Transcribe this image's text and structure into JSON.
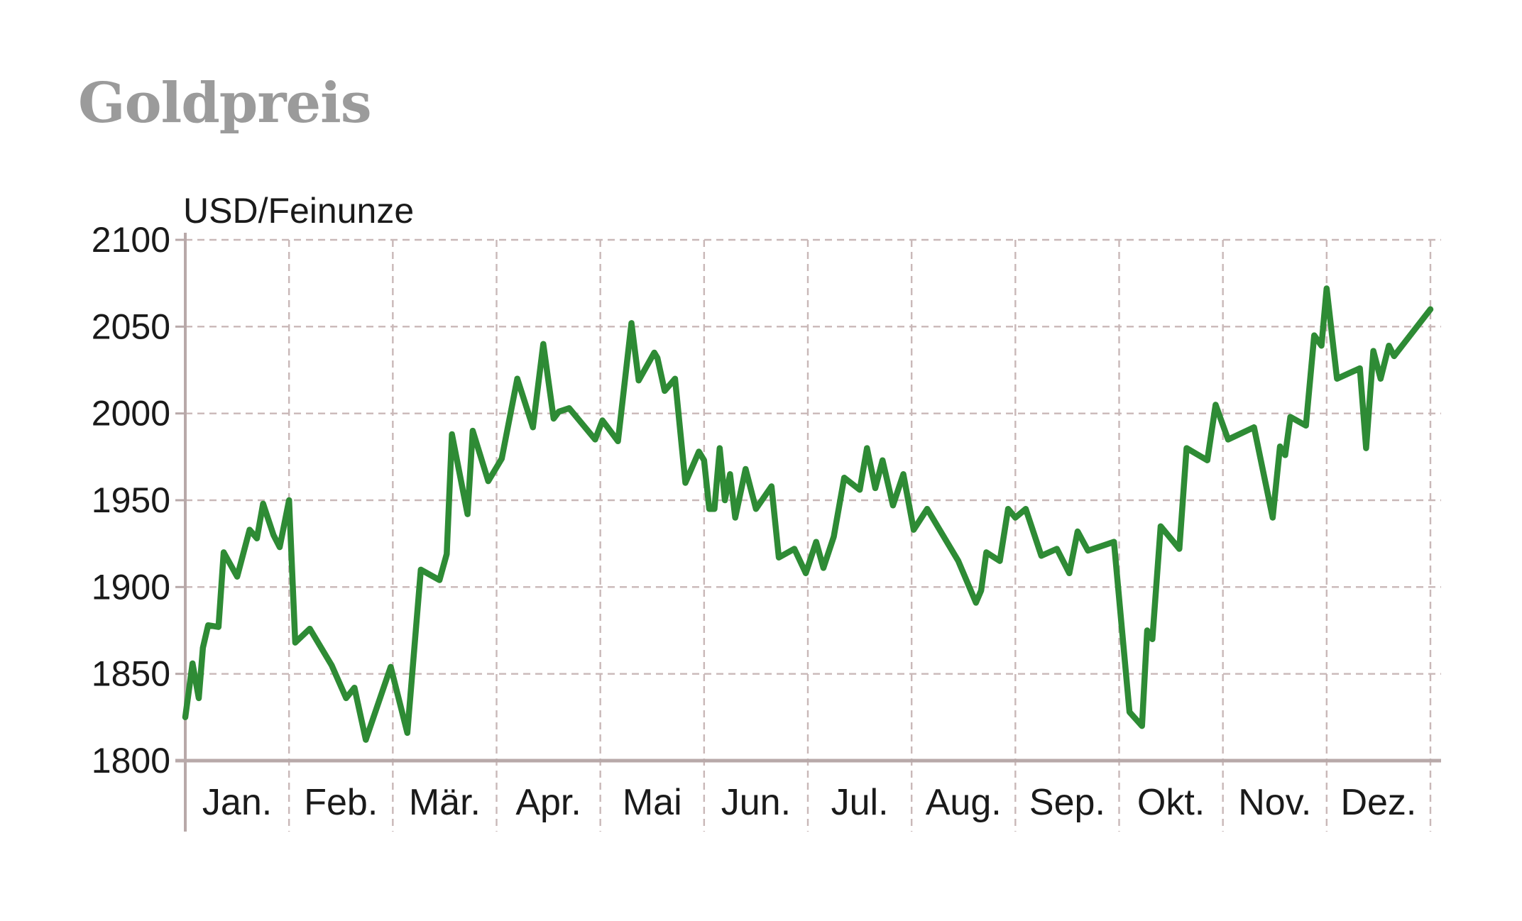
{
  "chart_data": {
    "type": "line",
    "title": "Goldpreis",
    "ylabel": "USD/Feinunze",
    "xlabel": "",
    "ylim": [
      1800,
      2100
    ],
    "yticks": [
      1800,
      1850,
      1900,
      1950,
      2000,
      2050,
      2100
    ],
    "categories": [
      "Jan.",
      "Feb.",
      "Mär.",
      "Apr.",
      "Mai",
      "Jun.",
      "Jul.",
      "Aug.",
      "Sep.",
      "Okt.",
      "Nov.",
      "Dez."
    ],
    "grid": true,
    "color": "#2e8b35",
    "series": [
      {
        "x": [
          0.0,
          0.07,
          0.13,
          0.17,
          0.22,
          0.32,
          0.37,
          0.5,
          0.62,
          0.69,
          0.75,
          0.85,
          0.91,
          1.0,
          1.06,
          1.2,
          1.41,
          1.55,
          1.63,
          1.74,
          1.98,
          2.14,
          2.27,
          2.45,
          2.52,
          2.57,
          2.72,
          2.77,
          2.92,
          3.05,
          3.2,
          3.35,
          3.45,
          3.55,
          3.6,
          3.7,
          3.95,
          4.02,
          4.07,
          4.17,
          4.3,
          4.37,
          4.52,
          4.55,
          4.62,
          4.72,
          4.82,
          4.95,
          5.0,
          5.05,
          5.1,
          5.15,
          5.2,
          5.25,
          5.3,
          5.4,
          5.5,
          5.65,
          5.72,
          5.87,
          5.98,
          6.08,
          6.15,
          6.25,
          6.35,
          6.5,
          6.57,
          6.65,
          6.72,
          6.82,
          6.92,
          7.02,
          7.15,
          7.45,
          7.62,
          7.67,
          7.72,
          7.85,
          7.93,
          8.0,
          8.1,
          8.25,
          8.4,
          8.52,
          8.6,
          8.7,
          8.95,
          9.1,
          9.22,
          9.27,
          9.32,
          9.4,
          9.58,
          9.65,
          9.85,
          9.93,
          10.05,
          10.3,
          10.48,
          10.55,
          10.6,
          10.65,
          10.8,
          10.88,
          10.95,
          11.0,
          11.1,
          11.32,
          11.38,
          11.45,
          11.52,
          11.6,
          11.65,
          12.0
        ],
        "values": [
          1825,
          1856,
          1836,
          1865,
          1878,
          1877,
          1920,
          1906,
          1933,
          1928,
          1948,
          1930,
          1923,
          1950,
          1868,
          1876,
          1855,
          1836,
          1842,
          1812,
          1854,
          1816,
          1910,
          1904,
          1919,
          1988,
          1942,
          1990,
          1961,
          1974,
          2020,
          1992,
          2040,
          1997,
          2001,
          2003,
          1985,
          1996,
          1992,
          1984,
          2052,
          2019,
          2035,
          2032,
          2013,
          2020,
          1960,
          1978,
          1973,
          1945,
          1945,
          1980,
          1950,
          1965,
          1940,
          1968,
          1945,
          1958,
          1917,
          1922,
          1908,
          1926,
          1911,
          1929,
          1963,
          1956,
          1980,
          1957,
          1973,
          1947,
          1965,
          1933,
          1945,
          1915,
          1891,
          1898,
          1920,
          1915,
          1945,
          1940,
          1945,
          1918,
          1922,
          1908,
          1932,
          1921,
          1926,
          1828,
          1820,
          1875,
          1870,
          1935,
          1922,
          1980,
          1973,
          2005,
          1985,
          1992,
          1940,
          1981,
          1976,
          1998,
          1993,
          2045,
          2039,
          2072,
          2020,
          2026,
          1980,
          2036,
          2020,
          2039,
          2033,
          2060
        ]
      }
    ]
  }
}
